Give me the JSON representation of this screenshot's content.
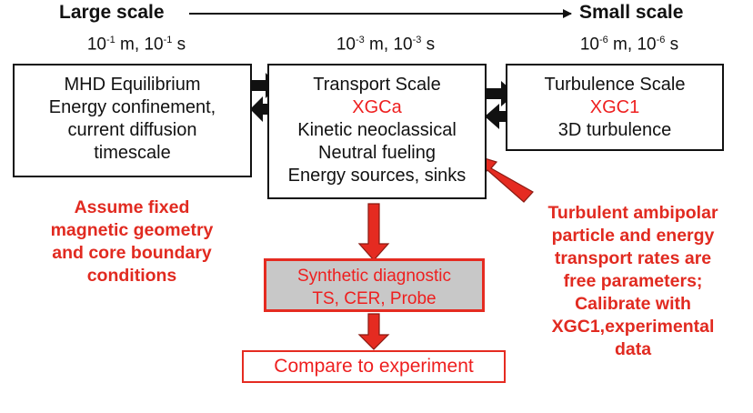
{
  "header": {
    "left": "Large scale",
    "right": "Small scale"
  },
  "scales": {
    "large": {
      "m_base": "10",
      "m_exp": "-1",
      "s_base": "10",
      "s_exp": "-1",
      "m_unit": " m, ",
      "s_unit": " s"
    },
    "mid": {
      "m_base": "10",
      "m_exp": "-3",
      "s_base": "10",
      "s_exp": "-3",
      "m_unit": " m, ",
      "s_unit": " s"
    },
    "small": {
      "m_base": "10",
      "m_exp": "-6",
      "s_base": "10",
      "s_exp": "-6",
      "m_unit": " m, ",
      "s_unit": " s"
    }
  },
  "mhd_box": {
    "lines": [
      "MHD Equilibrium",
      "Energy confinement,",
      "current diffusion",
      "timescale"
    ]
  },
  "transport_box": {
    "line1": "Transport Scale",
    "code": "XGCa",
    "line3": "Kinetic neoclassical",
    "line4": "Neutral fueling",
    "line5": "Energy sources, sinks"
  },
  "turbulence_box": {
    "line1": "Turbulence Scale",
    "code": "XGC1",
    "line3": "3D turbulence"
  },
  "notes": {
    "left": [
      "Assume fixed",
      "magnetic geometry",
      "and core boundary",
      "conditions"
    ],
    "right": [
      "Turbulent ambipolar",
      "particle and energy",
      "transport rates are",
      "free parameters;",
      "Calibrate with",
      "XGC1,experimental",
      "data"
    ]
  },
  "synthetic_box": {
    "line1": "Synthetic diagnostic",
    "line2": "TS, CER, Probe"
  },
  "compare_box": {
    "label": "Compare to experiment"
  },
  "colors": {
    "accent_red": "#e52b21",
    "gray_fill": "#c8c8c8"
  }
}
